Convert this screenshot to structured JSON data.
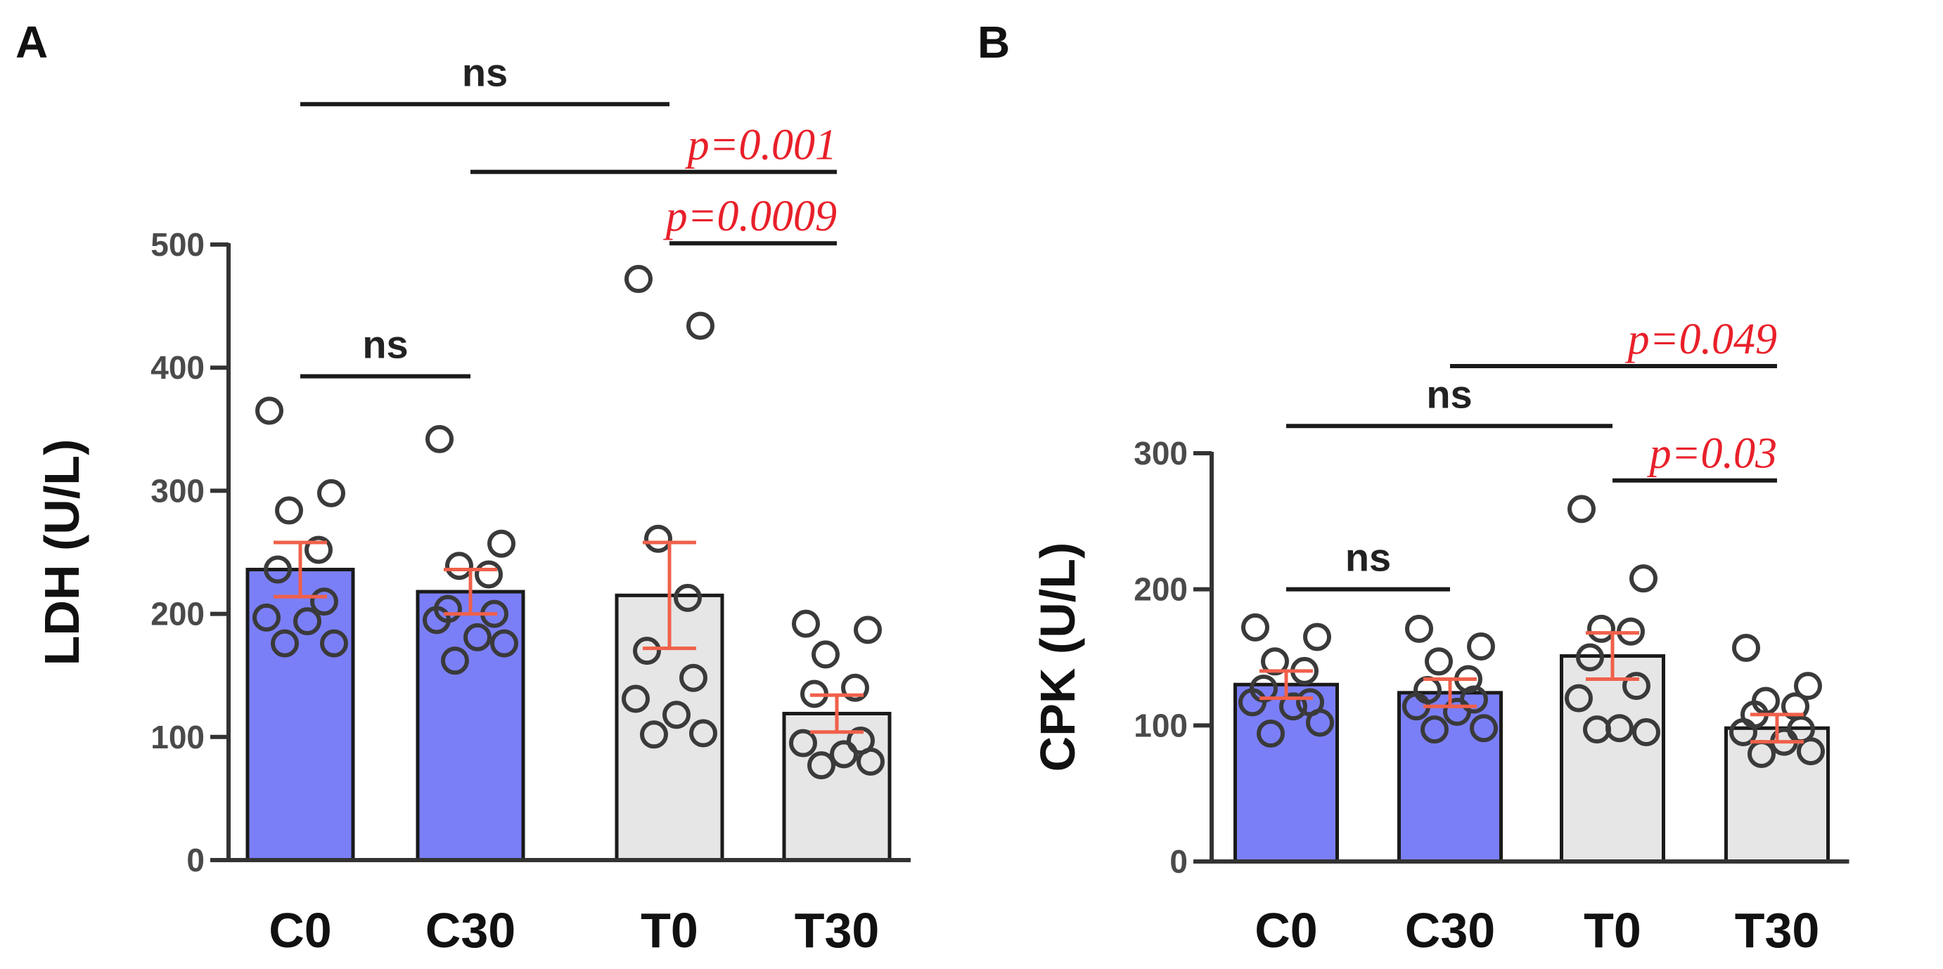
{
  "colors": {
    "control_fill": "#7b7ff7",
    "treated_fill": "#e6e6e6",
    "bar_stroke": "#1a1a1a",
    "error_bar": "#f0604a",
    "significant_text": "#e8202a",
    "axis": "#333333"
  },
  "chart_data": [
    {
      "type": "bar",
      "panel": "A",
      "title": "",
      "xlabel": "",
      "ylabel": "LDH (U/L)",
      "ylim": [
        0,
        500
      ],
      "yticks": [
        "0",
        "100",
        "200",
        "300",
        "400",
        "500"
      ],
      "categories": [
        "C0",
        "C30",
        "T0",
        "T30"
      ],
      "values": [
        236,
        218,
        215,
        119
      ],
      "errors": [
        22,
        18,
        43,
        15
      ],
      "points": [
        [
          365,
          298,
          284,
          252,
          236,
          210,
          197,
          194,
          176,
          176
        ],
        [
          342,
          257,
          239,
          232,
          204,
          200,
          195,
          181,
          176,
          162
        ],
        [
          472,
          434,
          261,
          213,
          170,
          148,
          131,
          118,
          103,
          102
        ],
        [
          192,
          187,
          167,
          140,
          135,
          97,
          95,
          86,
          80,
          77
        ]
      ],
      "brackets": [
        {
          "from": "C0",
          "to": "C30",
          "y": 393,
          "label": "ns",
          "significant": false
        },
        {
          "from": "C0",
          "to": "T0",
          "y": 614,
          "label": "ns",
          "significant": false
        },
        {
          "from": "C30",
          "to": "T30",
          "y": 559,
          "label": "p=0.001",
          "significant": true
        },
        {
          "from": "T0",
          "to": "T30",
          "y": 501,
          "label": "p=0.0009",
          "significant": true
        }
      ]
    },
    {
      "type": "bar",
      "panel": "B",
      "title": "",
      "xlabel": "",
      "ylabel": "CPK (U/L)",
      "ylim": [
        0,
        300
      ],
      "yticks": [
        "0",
        "100",
        "200",
        "300"
      ],
      "categories": [
        "C0",
        "C30",
        "T0",
        "T30"
      ],
      "values": [
        130,
        124,
        151,
        98
      ],
      "errors": [
        10,
        10,
        17,
        10
      ],
      "points": [
        [
          172,
          165,
          147,
          140,
          127,
          117,
          117,
          114,
          102,
          94
        ],
        [
          171,
          158,
          147,
          134,
          126,
          119,
          114,
          110,
          98,
          97
        ],
        [
          259,
          208,
          171,
          169,
          150,
          129,
          120,
          98,
          95,
          97
        ],
        [
          157,
          129,
          118,
          114,
          108,
          97,
          95,
          88,
          81,
          79
        ]
      ],
      "brackets": [
        {
          "from": "C0",
          "to": "C30",
          "y": 200,
          "label": "ns",
          "significant": false
        },
        {
          "from": "C0",
          "to": "T0",
          "y": 320,
          "label": "ns",
          "significant": false
        },
        {
          "from": "C30",
          "to": "T30",
          "y": 364,
          "label": "p=0.049",
          "significant": true
        },
        {
          "from": "T0",
          "to": "T30",
          "y": 280,
          "label": "p=0.03",
          "significant": true
        }
      ]
    }
  ]
}
